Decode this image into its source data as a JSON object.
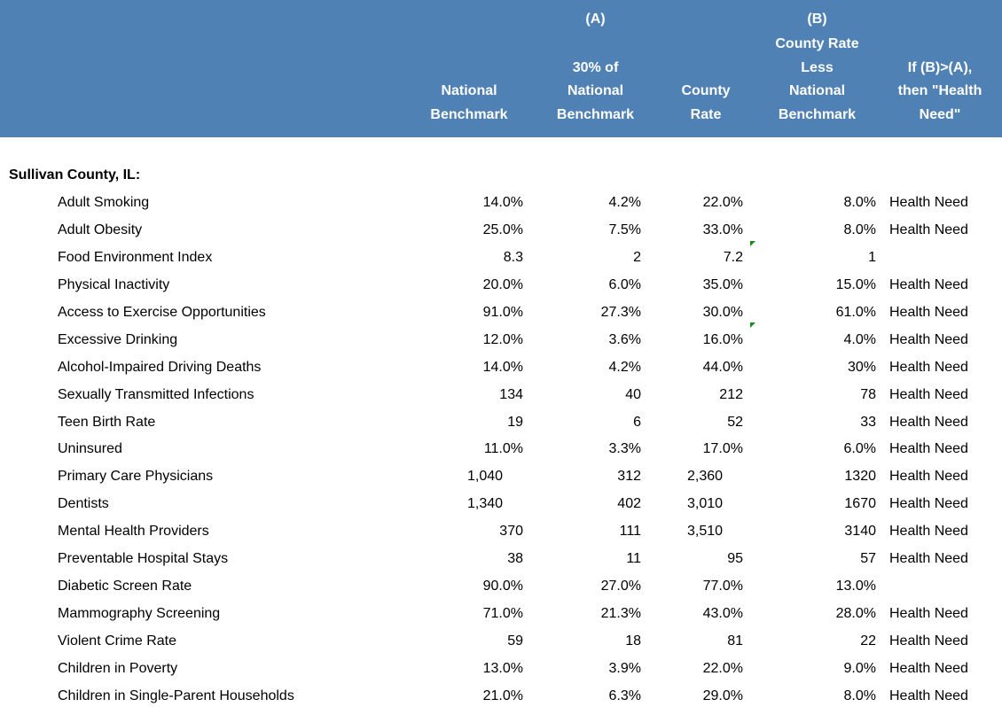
{
  "header": {
    "columns": [
      {
        "lines": [
          "National",
          "Benchmark"
        ]
      },
      {
        "marker": "(A)",
        "lines": [
          "30% of",
          "National",
          "Benchmark"
        ]
      },
      {
        "lines": [
          "County",
          "Rate"
        ]
      },
      {
        "marker": "(B)",
        "lines": [
          "County Rate",
          "Less",
          "National",
          "Benchmark"
        ]
      },
      {
        "lines": [
          "If (B)>(A),",
          "then \"Health",
          "Need\""
        ]
      }
    ]
  },
  "section": "Sullivan County, IL:",
  "table": {
    "rows": [
      [
        "Adult Smoking",
        "14.0%",
        "4.2%",
        "22.0%",
        "8.0%",
        "Health Need"
      ],
      [
        "Adult Obesity",
        "25.0%",
        "7.5%",
        "33.0%",
        "8.0%",
        "Health Need"
      ],
      [
        "Food Environment Index",
        "8.3",
        "2",
        "7.2",
        "1",
        ""
      ],
      [
        "Physical Inactivity",
        "20.0%",
        "6.0%",
        "35.0%",
        "15.0%",
        "Health Need"
      ],
      [
        "Access to Exercise Opportunities",
        "91.0%",
        "27.3%",
        "30.0%",
        "61.0%",
        "Health Need"
      ],
      [
        "Excessive Drinking",
        "12.0%",
        "3.6%",
        "16.0%",
        "4.0%",
        "Health Need"
      ],
      [
        "Alcohol-Impaired Driving Deaths",
        "14.0%",
        "4.2%",
        "44.0%",
        "30%",
        "Health Need"
      ],
      [
        "Sexually Transmitted Infections",
        "134",
        "40",
        "212",
        "78",
        "Health Need"
      ],
      [
        "Teen Birth Rate",
        "19",
        "6",
        "52",
        "33",
        "Health Need"
      ],
      [
        "Uninsured",
        "11.0%",
        "3.3%",
        "17.0%",
        "6.0%",
        "Health Need"
      ],
      [
        "Primary Care Physicians",
        "1,040",
        "312",
        "2,360",
        "1320",
        "Health Need"
      ],
      [
        "Dentists",
        "1,340",
        "402",
        "3,010",
        "1670",
        "Health Need"
      ],
      [
        "Mental Health Providers",
        "370",
        "111",
        "3,510",
        "3140",
        "Health Need"
      ],
      [
        "Preventable Hospital Stays",
        "38",
        "11",
        "95",
        "57",
        "Health Need"
      ],
      [
        "Diabetic Screen Rate",
        "90.0%",
        "27.0%",
        "77.0%",
        "13.0%",
        ""
      ],
      [
        "Mammography Screening",
        "71.0%",
        "21.3%",
        "43.0%",
        "28.0%",
        "Health Need"
      ],
      [
        "Violent Crime Rate",
        "59",
        "18",
        "81",
        "22",
        "Health Need"
      ],
      [
        "Children in Poverty",
        "13.0%",
        "3.9%",
        "22.0%",
        "9.0%",
        "Health Need"
      ],
      [
        "Children in Single-Parent Households",
        "21.0%",
        "6.3%",
        "29.0%",
        "8.0%",
        "Health Need"
      ]
    ]
  }
}
